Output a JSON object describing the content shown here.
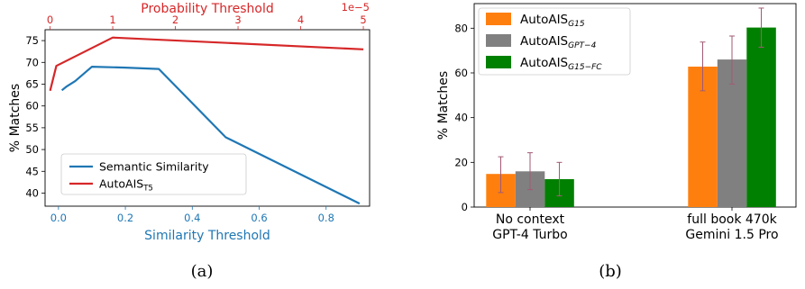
{
  "chart_data": [
    {
      "type": "line",
      "caption": "(a)",
      "xlabel": "Similarity Threshold",
      "ylabel": "% Matches",
      "xlim": [
        -0.04,
        0.93
      ],
      "ylim": [
        37,
        77.5
      ],
      "xticks": [
        "0.0",
        "0.2",
        "0.4",
        "0.6",
        "0.8"
      ],
      "yticks": [
        "40",
        "45",
        "50",
        "55",
        "60",
        "65",
        "70",
        "75"
      ],
      "x2label": "Probability Threshold",
      "x2lim": [
        -0.08,
        5.1
      ],
      "x2ticks": [
        "0",
        "1",
        "2",
        "3",
        "4",
        "5"
      ],
      "x2_offset": "1e−5",
      "legend_position": "lower-left",
      "colors": {
        "semantic": "#1f77b4",
        "autoais": "#d62728"
      },
      "series": [
        {
          "name": "Semantic Similarity",
          "axis": "bottom",
          "x": [
            0.01,
            0.025,
            0.05,
            0.1,
            0.2,
            0.3,
            0.5,
            0.9
          ],
          "y": [
            63.6,
            64.5,
            65.7,
            69.0,
            68.8,
            68.5,
            52.8,
            37.6
          ]
        },
        {
          "name": "AutoAIS",
          "name_sub": "T5",
          "axis": "top",
          "x": [
            0.0,
            0.1,
            1.0,
            5.0
          ],
          "y": [
            63.5,
            69.2,
            75.7,
            73.0
          ]
        }
      ]
    },
    {
      "type": "bar",
      "caption": "(b)",
      "ylabel": "% Matches",
      "ylim": [
        0,
        91
      ],
      "yticks": [
        "0",
        "20",
        "40",
        "60",
        "80"
      ],
      "categories": [
        "No context\nGPT-4 Turbo",
        "full book 470k\nGemini 1.5 Pro"
      ],
      "legend_position": "top-left",
      "series": [
        {
          "name": "AutoAIS",
          "name_sub": "G15",
          "color": "#ff7f0e",
          "values": [
            14.8,
            62.8
          ],
          "err_low": [
            6.5,
            52.0
          ],
          "err_high": [
            22.5,
            73.8
          ]
        },
        {
          "name": "AutoAIS",
          "name_sub": "GPT−4",
          "color": "#808080",
          "values": [
            16.0,
            66.0
          ],
          "err_low": [
            7.8,
            55.0
          ],
          "err_high": [
            24.3,
            76.5
          ]
        },
        {
          "name": "AutoAIS",
          "name_sub": "G15−FC",
          "color": "#008000",
          "values": [
            12.5,
            80.3
          ],
          "err_low": [
            5.0,
            71.5
          ],
          "err_high": [
            20.0,
            89.0
          ]
        }
      ]
    }
  ]
}
